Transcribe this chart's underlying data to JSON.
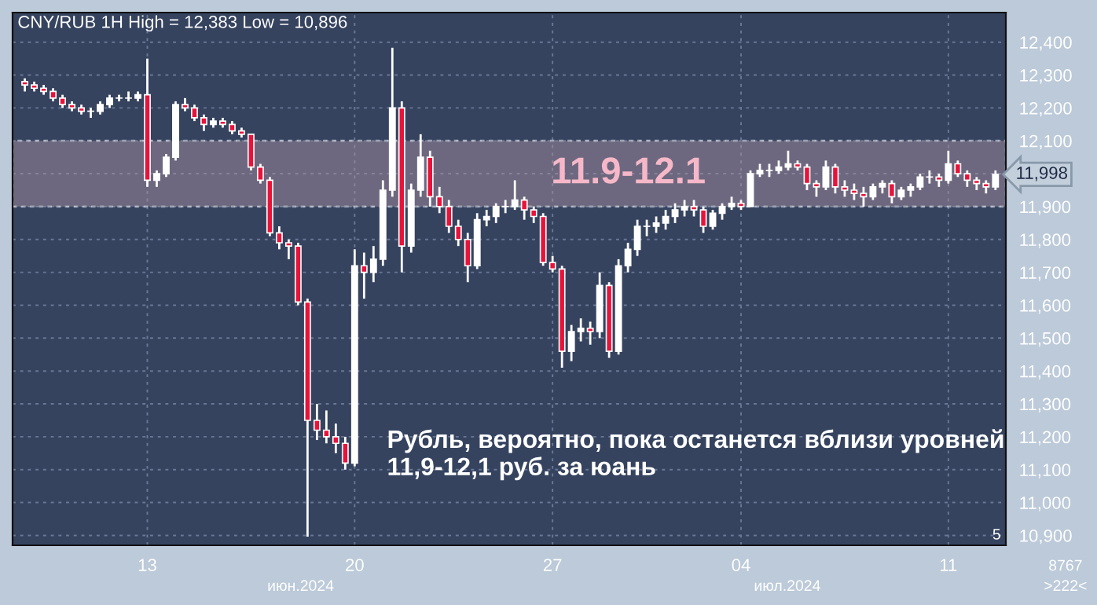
{
  "chart_data": {
    "type": "candlestick",
    "title": "CNY/RUB 1H High = 12,383 Low = 10,896",
    "categories": [
      null,
      null,
      null,
      null,
      null,
      null,
      null,
      null,
      null,
      null,
      null,
      null,
      null,
      "13",
      null,
      null,
      null,
      null,
      null,
      null,
      null,
      null,
      null,
      null,
      null,
      null,
      null,
      null,
      null,
      null,
      null,
      null,
      null,
      null,
      null,
      "20",
      null,
      null,
      null,
      null,
      null,
      null,
      null,
      null,
      null,
      null,
      null,
      null,
      null,
      null,
      null,
      null,
      null,
      null,
      null,
      null,
      "27",
      null,
      null,
      null,
      null,
      null,
      null,
      null,
      null,
      null,
      null,
      null,
      null,
      null,
      null,
      null,
      null,
      null,
      null,
      null,
      "04",
      null,
      null,
      null,
      null,
      null,
      null,
      null,
      null,
      null,
      null,
      null,
      null,
      null,
      null,
      null,
      null,
      null,
      null,
      null,
      null,
      null,
      "11",
      null,
      null,
      null,
      null,
      null
    ],
    "ohlc": [
      [
        12280,
        12290,
        12250,
        12270
      ],
      [
        12270,
        12280,
        12250,
        12260
      ],
      [
        12260,
        12270,
        12240,
        12250
      ],
      [
        12250,
        12260,
        12220,
        12230
      ],
      [
        12230,
        12240,
        12200,
        12210
      ],
      [
        12210,
        12220,
        12190,
        12200
      ],
      [
        12200,
        12210,
        12180,
        12190
      ],
      [
        12190,
        12200,
        12170,
        12190
      ],
      [
        12190,
        12220,
        12180,
        12210
      ],
      [
        12210,
        12240,
        12200,
        12230
      ],
      [
        12230,
        12240,
        12220,
        12230
      ],
      [
        12230,
        12250,
        12220,
        12230
      ],
      [
        12230,
        12250,
        12220,
        12240
      ],
      [
        12240,
        12350,
        11960,
        11980
      ],
      [
        11980,
        12010,
        11960,
        12000
      ],
      [
        12000,
        12060,
        11990,
        12050
      ],
      [
        12050,
        12220,
        12040,
        12210
      ],
      [
        12210,
        12230,
        12190,
        12200
      ],
      [
        12200,
        12210,
        12160,
        12170
      ],
      [
        12170,
        12180,
        12130,
        12150
      ],
      [
        12150,
        12170,
        12140,
        12160
      ],
      [
        12160,
        12170,
        12140,
        12150
      ],
      [
        12150,
        12160,
        12120,
        12130
      ],
      [
        12130,
        12140,
        12110,
        12120
      ],
      [
        12120,
        12120,
        12010,
        12020
      ],
      [
        12020,
        12030,
        11970,
        11980
      ],
      [
        11980,
        11990,
        11810,
        11820
      ],
      [
        11820,
        11840,
        11770,
        11790
      ],
      [
        11790,
        11800,
        11740,
        11780
      ],
      [
        11780,
        11790,
        11600,
        11610
      ],
      [
        11610,
        11620,
        10896,
        11250
      ],
      [
        11250,
        11300,
        11190,
        11220
      ],
      [
        11220,
        11280,
        11180,
        11200
      ],
      [
        11200,
        11240,
        11150,
        11180
      ],
      [
        11180,
        11200,
        11100,
        11120
      ],
      [
        11120,
        11770,
        11110,
        11720
      ],
      [
        11720,
        11760,
        11620,
        11700
      ],
      [
        11700,
        11780,
        11670,
        11740
      ],
      [
        11740,
        11980,
        11720,
        11950
      ],
      [
        11950,
        12383,
        11930,
        12200
      ],
      [
        12200,
        12220,
        11700,
        11780
      ],
      [
        11780,
        11970,
        11760,
        11950
      ],
      [
        11950,
        12120,
        11930,
        12050
      ],
      [
        12050,
        12070,
        11900,
        11930
      ],
      [
        11930,
        11960,
        11880,
        11900
      ],
      [
        11900,
        11920,
        11820,
        11840
      ],
      [
        11840,
        11860,
        11780,
        11800
      ],
      [
        11800,
        11820,
        11670,
        11720
      ],
      [
        11720,
        11880,
        11710,
        11860
      ],
      [
        11860,
        11890,
        11840,
        11870
      ],
      [
        11870,
        11910,
        11850,
        11900
      ],
      [
        11900,
        11920,
        11880,
        11900
      ],
      [
        11900,
        11980,
        11890,
        11920
      ],
      [
        11920,
        11930,
        11860,
        11890
      ],
      [
        11890,
        11900,
        11850,
        11870
      ],
      [
        11870,
        11880,
        11720,
        11730
      ],
      [
        11730,
        11750,
        11700,
        11710
      ],
      [
        11710,
        11720,
        11410,
        11460
      ],
      [
        11460,
        11540,
        11430,
        11520
      ],
      [
        11520,
        11560,
        11490,
        11530
      ],
      [
        11530,
        11550,
        11480,
        11520
      ],
      [
        11520,
        11700,
        11500,
        11660
      ],
      [
        11660,
        11670,
        11440,
        11460
      ],
      [
        11460,
        11740,
        11450,
        11720
      ],
      [
        11720,
        11790,
        11700,
        11770
      ],
      [
        11770,
        11860,
        11750,
        11840
      ],
      [
        11840,
        11860,
        11810,
        11840
      ],
      [
        11840,
        11870,
        11820,
        11850
      ],
      [
        11850,
        11890,
        11830,
        11870
      ],
      [
        11870,
        11910,
        11850,
        11890
      ],
      [
        11890,
        11920,
        11870,
        11900
      ],
      [
        11900,
        11920,
        11870,
        11890
      ],
      [
        11890,
        11900,
        11820,
        11840
      ],
      [
        11840,
        11890,
        11830,
        11880
      ],
      [
        11880,
        11910,
        11860,
        11900
      ],
      [
        11900,
        11930,
        11890,
        11910
      ],
      [
        11910,
        11920,
        11890,
        11900
      ],
      [
        11900,
        12010,
        11900,
        12000
      ],
      [
        12000,
        12030,
        11990,
        12010
      ],
      [
        12010,
        12030,
        11990,
        12010
      ],
      [
        12010,
        12040,
        12000,
        12020
      ],
      [
        12020,
        12070,
        12010,
        12030
      ],
      [
        12030,
        12040,
        12010,
        12020
      ],
      [
        12020,
        12030,
        11950,
        11970
      ],
      [
        11970,
        11980,
        11930,
        11960
      ],
      [
        11960,
        12040,
        11950,
        12020
      ],
      [
        12020,
        12030,
        11940,
        11960
      ],
      [
        11960,
        11980,
        11930,
        11950
      ],
      [
        11950,
        11970,
        11920,
        11940
      ],
      [
        11940,
        11960,
        11900,
        11930
      ],
      [
        11930,
        11970,
        11920,
        11960
      ],
      [
        11960,
        11980,
        11940,
        11970
      ],
      [
        11970,
        11980,
        11910,
        11930
      ],
      [
        11930,
        11960,
        11920,
        11950
      ],
      [
        11950,
        11970,
        11930,
        11960
      ],
      [
        11960,
        12000,
        11950,
        11990
      ],
      [
        11990,
        12010,
        11970,
        11990
      ],
      [
        11990,
        12000,
        11960,
        11980
      ],
      [
        11980,
        12070,
        11970,
        12030
      ],
      [
        12030,
        12040,
        11990,
        12000
      ],
      [
        12000,
        12010,
        11960,
        11980
      ],
      [
        11980,
        11990,
        11950,
        11970
      ],
      [
        11970,
        11980,
        11940,
        11960
      ],
      [
        11960,
        12010,
        11950,
        11998
      ]
    ],
    "ylim": [
      10870,
      12490
    ],
    "yticks": [
      {
        "value": 10900,
        "label": "10,900"
      },
      {
        "value": 11000,
        "label": "11,000"
      },
      {
        "value": 11100,
        "label": "11,100"
      },
      {
        "value": 11200,
        "label": "11,200"
      },
      {
        "value": 11300,
        "label": "11,300"
      },
      {
        "value": 11400,
        "label": "11,400"
      },
      {
        "value": 11500,
        "label": "11,500"
      },
      {
        "value": 11600,
        "label": "11,600"
      },
      {
        "value": 11700,
        "label": "11,700"
      },
      {
        "value": 11800,
        "label": "11,800"
      },
      {
        "value": 11900,
        "label": "11,900"
      },
      {
        "value": 12000,
        "label": null
      },
      {
        "value": 12100,
        "label": "12,100"
      },
      {
        "value": 12200,
        "label": "12,200"
      },
      {
        "value": 12300,
        "label": "12,300"
      },
      {
        "value": 12400,
        "label": "12,400"
      }
    ],
    "bands": [
      {
        "axis": "y",
        "from": 11900,
        "to": 12100,
        "label": "11.9-12.1",
        "color": "#a58ea0"
      }
    ],
    "grid": true,
    "annotations": [
      "Рубль, вероятно, пока останется вблизи уровней\n11,9-12,1 руб. за юань",
      "июн.2024",
      "июл.2024",
      "8767",
      ">222<",
      "5",
      "11,998"
    ]
  }
}
